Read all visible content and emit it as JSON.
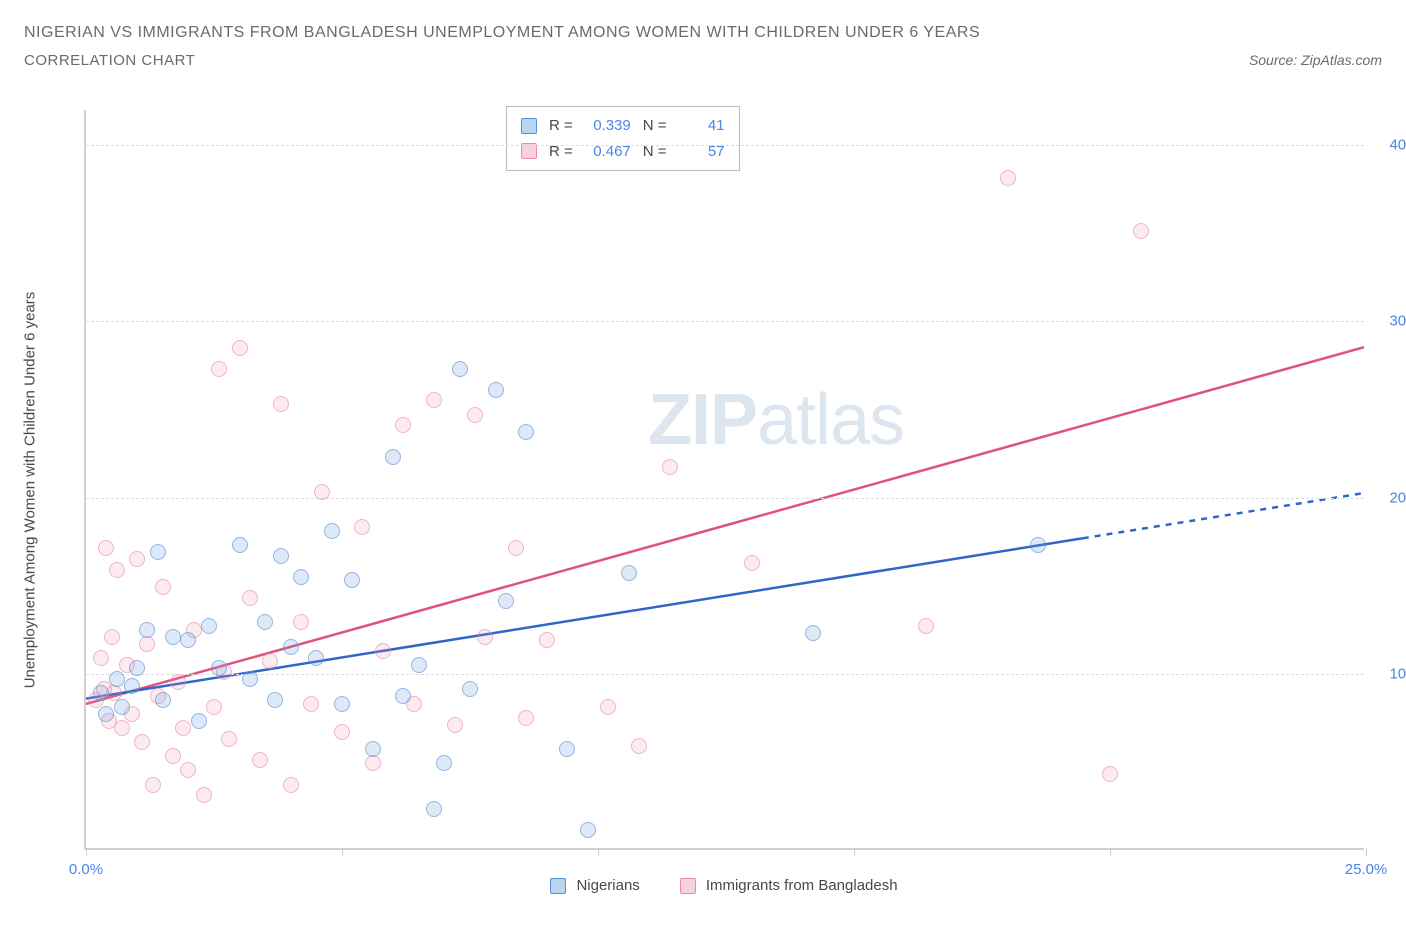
{
  "header": {
    "title": "NIGERIAN VS IMMIGRANTS FROM BANGLADESH UNEMPLOYMENT AMONG WOMEN WITH CHILDREN UNDER 6 YEARS",
    "subtitle": "CORRELATION CHART",
    "source": "Source: ZipAtlas.com"
  },
  "y_axis": {
    "label": "Unemployment Among Women with Children Under 6 years"
  },
  "watermark": {
    "bold": "ZIP",
    "light": "atlas"
  },
  "chart": {
    "type": "scatter",
    "xlim": [
      0,
      25
    ],
    "ylim": [
      0,
      42
    ],
    "x_ticks": [
      0,
      5,
      10,
      15,
      20,
      25
    ],
    "x_tick_labels": {
      "0": "0.0%",
      "25": "25.0%"
    },
    "y_gridlines": [
      10,
      20,
      30,
      40
    ],
    "y_tick_labels": {
      "10": "10.0%",
      "20": "20.0%",
      "30": "30.0%",
      "40": "40.0%"
    },
    "background_color": "#ffffff",
    "grid_color": "#dcdcdc",
    "axis_color": "#cfcfcf",
    "colors": {
      "blue_fill": "rgba(107,157,224,0.35)",
      "blue_stroke": "#5b8fd0",
      "blue_line": "#2e66c9",
      "pink_fill": "rgba(236,140,170,0.28)",
      "pink_stroke": "#e88bab",
      "pink_line": "#e0527d",
      "tick_label": "#4a86e8"
    },
    "marker_size": 16,
    "trend_lines": {
      "blue": {
        "x1": 0,
        "y1": 8.5,
        "x2": 25,
        "y2": 20.2,
        "dash_from_x": 19.5
      },
      "pink": {
        "x1": 0,
        "y1": 8.2,
        "x2": 25,
        "y2": 28.5
      }
    },
    "stat_box": {
      "rows": [
        {
          "swatch": "blue",
          "r_label": "R =",
          "r": "0.339",
          "n_label": "N =",
          "n": "41"
        },
        {
          "swatch": "pink",
          "r_label": "R =",
          "r": "0.467",
          "n_label": "N =",
          "n": "57"
        }
      ]
    },
    "bottom_legend": [
      {
        "swatch": "blue",
        "label": "Nigerians"
      },
      {
        "swatch": "pink",
        "label": "Immigrants from Bangladesh"
      }
    ],
    "series": {
      "blue": [
        [
          0.3,
          8.8
        ],
        [
          0.4,
          7.6
        ],
        [
          0.6,
          9.6
        ],
        [
          0.7,
          8.0
        ],
        [
          0.9,
          9.2
        ],
        [
          1.0,
          10.2
        ],
        [
          1.2,
          12.4
        ],
        [
          1.4,
          16.8
        ],
        [
          1.5,
          8.4
        ],
        [
          1.7,
          12.0
        ],
        [
          2.0,
          11.8
        ],
        [
          2.2,
          7.2
        ],
        [
          2.4,
          12.6
        ],
        [
          2.6,
          10.2
        ],
        [
          3.0,
          17.2
        ],
        [
          3.2,
          9.6
        ],
        [
          3.5,
          12.8
        ],
        [
          3.7,
          8.4
        ],
        [
          3.8,
          16.6
        ],
        [
          4.0,
          11.4
        ],
        [
          4.2,
          15.4
        ],
        [
          4.5,
          10.8
        ],
        [
          4.8,
          18.0
        ],
        [
          5.0,
          8.2
        ],
        [
          5.2,
          15.2
        ],
        [
          5.6,
          5.6
        ],
        [
          6.0,
          22.2
        ],
        [
          6.2,
          8.6
        ],
        [
          6.5,
          10.4
        ],
        [
          7.0,
          4.8
        ],
        [
          7.3,
          27.2
        ],
        [
          7.5,
          9.0
        ],
        [
          8.0,
          26.0
        ],
        [
          8.2,
          14.0
        ],
        [
          8.6,
          23.6
        ],
        [
          9.4,
          5.6
        ],
        [
          9.8,
          1.0
        ],
        [
          10.6,
          15.6
        ],
        [
          14.2,
          12.2
        ],
        [
          18.6,
          17.2
        ],
        [
          6.8,
          2.2
        ]
      ],
      "pink": [
        [
          0.2,
          8.4
        ],
        [
          0.3,
          10.8
        ],
        [
          0.35,
          9.0
        ],
        [
          0.4,
          17.0
        ],
        [
          0.45,
          7.2
        ],
        [
          0.5,
          12.0
        ],
        [
          0.55,
          8.8
        ],
        [
          0.6,
          15.8
        ],
        [
          0.7,
          6.8
        ],
        [
          0.8,
          10.4
        ],
        [
          0.9,
          7.6
        ],
        [
          1.0,
          16.4
        ],
        [
          1.1,
          6.0
        ],
        [
          1.2,
          11.6
        ],
        [
          1.3,
          3.6
        ],
        [
          1.4,
          8.6
        ],
        [
          1.5,
          14.8
        ],
        [
          1.7,
          5.2
        ],
        [
          1.8,
          9.4
        ],
        [
          2.0,
          4.4
        ],
        [
          2.1,
          12.4
        ],
        [
          2.3,
          3.0
        ],
        [
          2.5,
          8.0
        ],
        [
          2.6,
          27.2
        ],
        [
          2.8,
          6.2
        ],
        [
          3.0,
          28.4
        ],
        [
          3.2,
          14.2
        ],
        [
          3.4,
          5.0
        ],
        [
          3.6,
          10.6
        ],
        [
          3.8,
          25.2
        ],
        [
          4.0,
          3.6
        ],
        [
          4.2,
          12.8
        ],
        [
          4.6,
          20.2
        ],
        [
          5.0,
          6.6
        ],
        [
          5.4,
          18.2
        ],
        [
          5.6,
          4.8
        ],
        [
          5.8,
          11.2
        ],
        [
          6.2,
          24.0
        ],
        [
          6.4,
          8.2
        ],
        [
          6.8,
          25.4
        ],
        [
          7.2,
          7.0
        ],
        [
          7.6,
          24.6
        ],
        [
          7.8,
          12.0
        ],
        [
          8.4,
          17.0
        ],
        [
          8.6,
          7.4
        ],
        [
          9.0,
          11.8
        ],
        [
          10.2,
          8.0
        ],
        [
          10.8,
          5.8
        ],
        [
          11.4,
          21.6
        ],
        [
          13.0,
          16.2
        ],
        [
          16.4,
          12.6
        ],
        [
          18.0,
          38.0
        ],
        [
          20.6,
          35.0
        ],
        [
          20.0,
          4.2
        ],
        [
          4.4,
          8.2
        ],
        [
          1.9,
          6.8
        ],
        [
          2.7,
          10.0
        ]
      ]
    }
  }
}
